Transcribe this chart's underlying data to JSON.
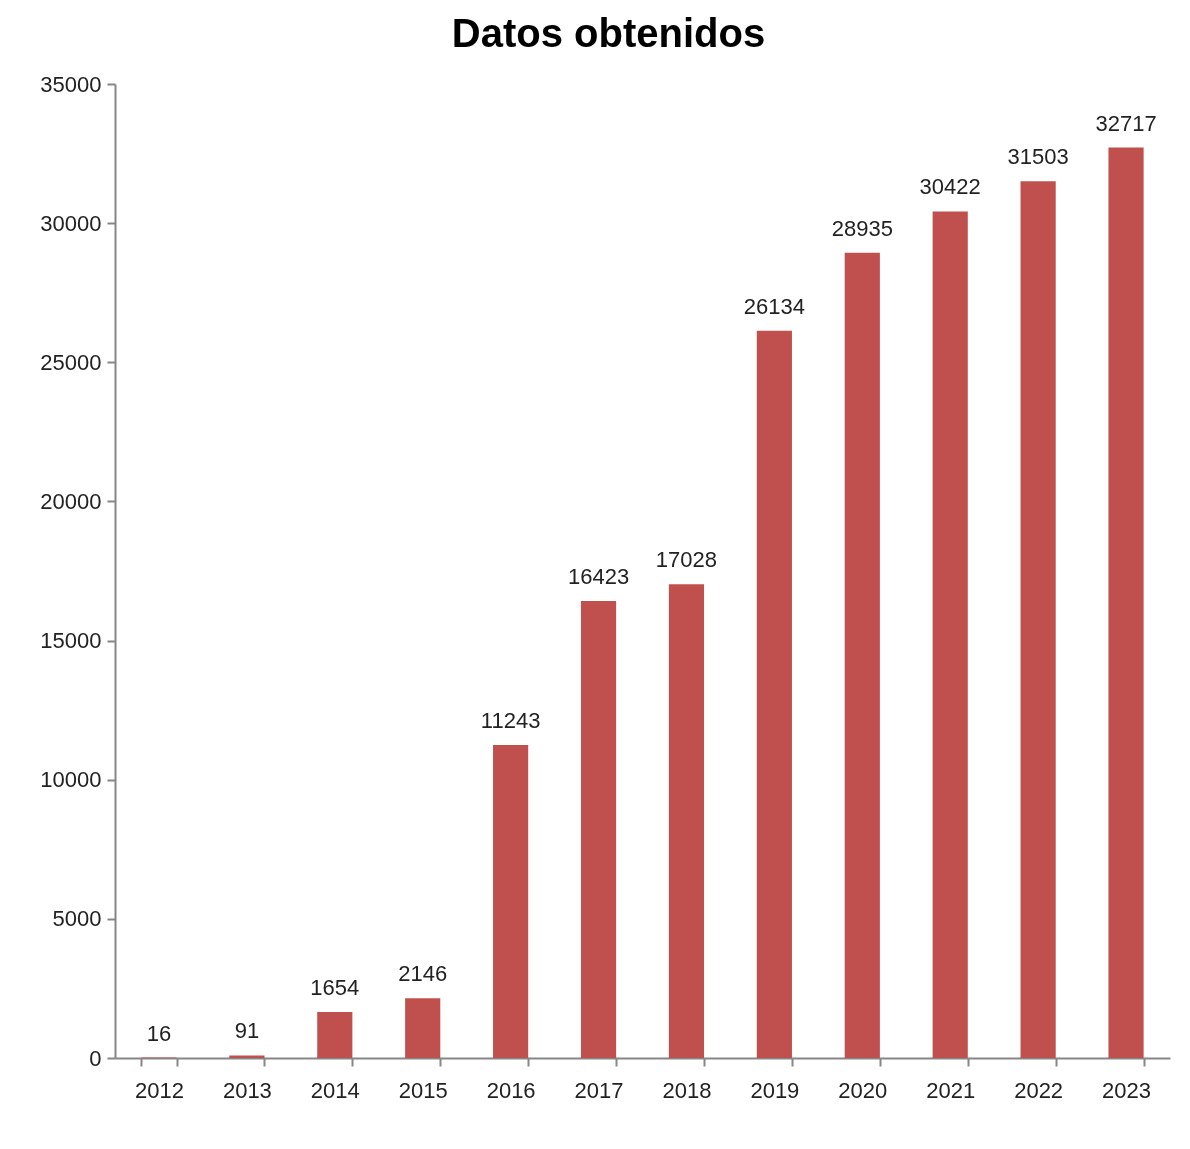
{
  "chart_data": {
    "type": "bar",
    "title": "Datos obtenidos",
    "categories": [
      "2012",
      "2013",
      "2014",
      "2015",
      "2016",
      "2017",
      "2018",
      "2019",
      "2020",
      "2021",
      "2022",
      "2023"
    ],
    "values": [
      16,
      91,
      1654,
      2146,
      11243,
      16423,
      17028,
      26134,
      28935,
      30422,
      31503,
      32717
    ],
    "color": "#c0504d",
    "ylim": [
      0,
      35000
    ],
    "yticks": [
      0,
      5000,
      10000,
      15000,
      20000,
      25000,
      30000,
      35000
    ],
    "data_labels": true,
    "grid": false
  }
}
